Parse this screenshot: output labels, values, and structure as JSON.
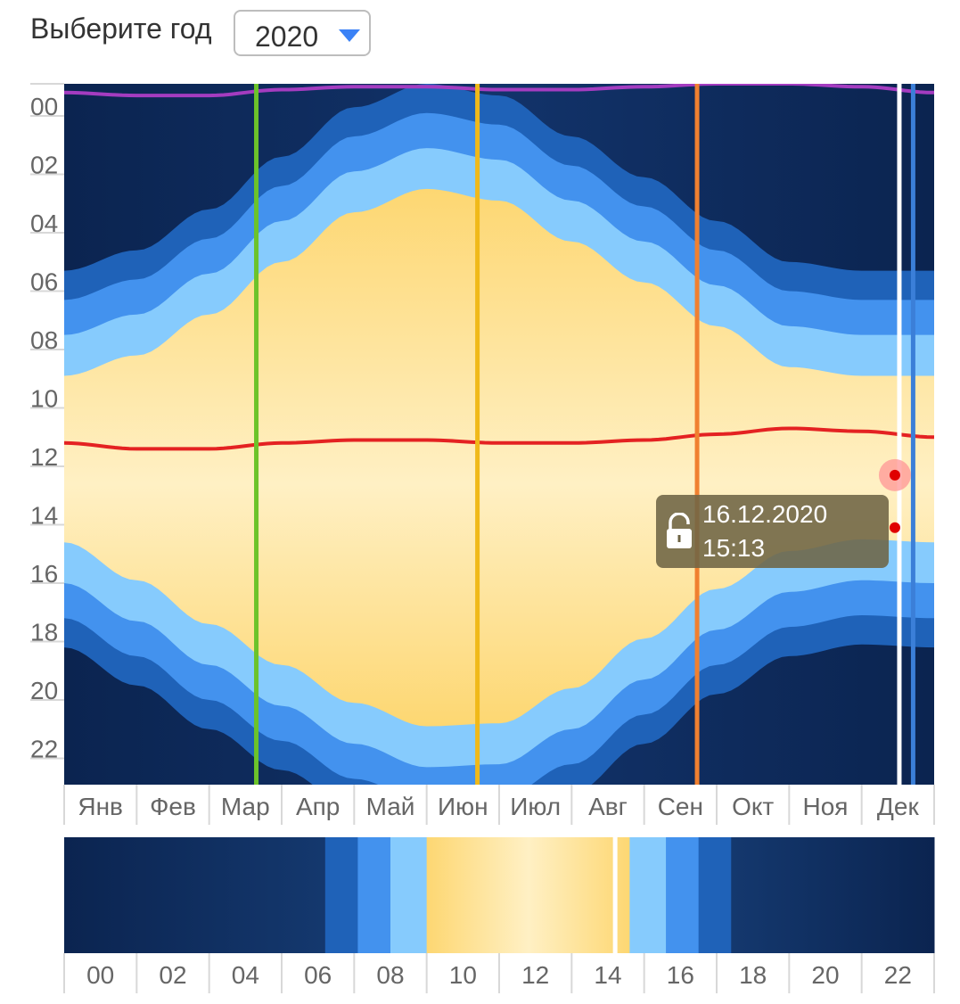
{
  "header": {
    "year_label": "Выберите год",
    "year_selected": "2020",
    "dropdown_icon": "triangle-down-icon",
    "accent_color": "#3b82f6"
  },
  "chart_data": {
    "type": "heatmap",
    "year": 2020,
    "y_axis_ticks": [
      "00",
      "02",
      "04",
      "06",
      "08",
      "10",
      "12",
      "14",
      "16",
      "18",
      "20",
      "22"
    ],
    "x_axis_ticks": [
      "Янв",
      "Фев",
      "Мар",
      "Апр",
      "Май",
      "Июн",
      "Июл",
      "Авг",
      "Сен",
      "Окт",
      "Ноя",
      "Дек"
    ],
    "ylim": [
      0,
      24
    ],
    "xlim": [
      0,
      12
    ],
    "grid": false,
    "bands_colors": {
      "night": "#0d2a5a",
      "astronomical_twilight": "#1f62b8",
      "nautical_twilight": "#4392ee",
      "civil_twilight": "#86cbfd",
      "day": "#fde4a0"
    },
    "day_bounds": {
      "months": [
        0,
        1,
        2,
        3,
        4,
        5,
        6,
        7,
        8,
        9,
        10,
        11,
        12
      ],
      "sunrise_h": [
        10.0,
        9.3,
        7.9,
        6.1,
        4.4,
        3.6,
        4.0,
        5.4,
        6.8,
        8.3,
        9.7,
        10.0,
        10.0
      ],
      "sunset_h": [
        15.7,
        17.0,
        18.5,
        19.9,
        21.2,
        22.0,
        21.9,
        20.7,
        19.0,
        17.3,
        16.0,
        15.6,
        15.7
      ]
    },
    "lines": [
      {
        "name": "midnight_curve",
        "color": "#a43cc0",
        "values_h": [
          0.3,
          0.4,
          0.4,
          0.2,
          0.1,
          0.1,
          0.2,
          0.2,
          0.1,
          0.0,
          0.0,
          0.1,
          0.3
        ]
      },
      {
        "name": "noon_curve",
        "color": "#e42222",
        "values_h": [
          12.3,
          12.5,
          12.5,
          12.3,
          12.2,
          12.2,
          12.3,
          12.3,
          12.2,
          12.0,
          11.8,
          11.9,
          12.1
        ]
      }
    ],
    "markers": [
      {
        "name": "equinox_march",
        "month": 2.65,
        "color": "#6cc32a"
      },
      {
        "name": "solstice_june",
        "month": 5.7,
        "color": "#f0b919"
      },
      {
        "name": "equinox_september",
        "month": 8.73,
        "color": "#f08030"
      },
      {
        "name": "selected_date",
        "month": 11.52,
        "color": "#ffffff"
      },
      {
        "name": "solstice_december",
        "month": 11.71,
        "color": "#3b7fd8"
      }
    ],
    "selected_points": [
      {
        "month": 11.52,
        "hour": 13.4,
        "color": "#e00000",
        "halo": true
      },
      {
        "month": 11.52,
        "hour": 15.2,
        "color": "#e00000",
        "halo": false
      }
    ]
  },
  "day_strip": {
    "x_axis_ticks": [
      "00",
      "02",
      "04",
      "06",
      "08",
      "10",
      "12",
      "14",
      "16",
      "18",
      "20",
      "22"
    ],
    "xlim": [
      0,
      24
    ],
    "segments_h": [
      {
        "from": 0,
        "to": 7.2,
        "band": "night"
      },
      {
        "from": 7.2,
        "to": 8.1,
        "band": "astronomical_twilight"
      },
      {
        "from": 8.1,
        "to": 9.0,
        "band": "nautical_twilight"
      },
      {
        "from": 9.0,
        "to": 10.0,
        "band": "civil_twilight"
      },
      {
        "from": 10.0,
        "to": 15.6,
        "band": "day"
      },
      {
        "from": 15.6,
        "to": 16.6,
        "band": "civil_twilight"
      },
      {
        "from": 16.6,
        "to": 17.5,
        "band": "nautical_twilight"
      },
      {
        "from": 17.5,
        "to": 18.4,
        "band": "astronomical_twilight"
      },
      {
        "from": 18.4,
        "to": 24,
        "band": "night"
      }
    ],
    "current_time_h": 15.2
  },
  "tooltip": {
    "date": "16.12.2020",
    "time": "15:13",
    "lock_icon": "unlocked-padlock-icon"
  }
}
